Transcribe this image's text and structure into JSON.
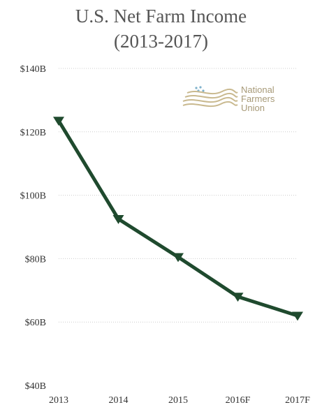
{
  "chart_data": {
    "type": "line",
    "title": "U.S. Net Farm Income",
    "subtitle": "(2013-2017)",
    "categories": [
      "2013",
      "2014",
      "2015",
      "2016F",
      "2017F"
    ],
    "series": [
      {
        "values": [
          123.5,
          92.5,
          80.5,
          68.0,
          62.0
        ]
      }
    ],
    "ylim": [
      40,
      140
    ],
    "yticks": [
      40,
      60,
      80,
      100,
      120,
      140
    ],
    "ytick_labels": [
      "$40B",
      "$60B",
      "$80B",
      "$100B",
      "$120B",
      "$140B"
    ],
    "grid": true,
    "marker": "triangle-down",
    "line_color": "#1f4a2e"
  },
  "logo": {
    "lines": [
      "National",
      "Farmers",
      "Union"
    ]
  }
}
